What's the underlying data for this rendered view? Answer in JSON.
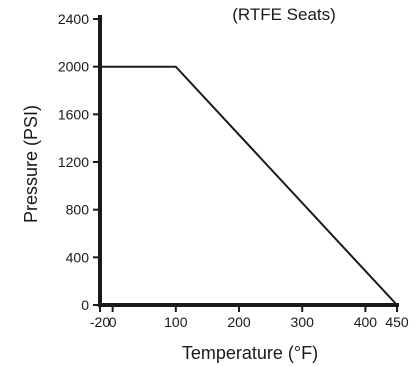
{
  "chart_data": {
    "type": "line",
    "title": "(RTFE Seats)",
    "xlabel": "Temperature (°F)",
    "ylabel": "Pressure (PSI)",
    "xlim": [
      -20,
      450
    ],
    "ylim": [
      0,
      2400
    ],
    "x_ticks": [
      -20,
      0,
      100,
      200,
      300,
      400,
      450
    ],
    "y_ticks": [
      0,
      400,
      800,
      1200,
      1600,
      2000,
      2400
    ],
    "x_tick_labels": [
      "-20",
      "0",
      "100",
      "200",
      "300",
      "400",
      "450"
    ],
    "y_tick_labels": [
      "0",
      "400",
      "800",
      "1200",
      "1600",
      "2000",
      "2400"
    ],
    "grid": false,
    "series": [
      {
        "x": [
          -20,
          100,
          450
        ],
        "y": [
          2000,
          2000,
          0
        ],
        "color": "#1a1a1a"
      }
    ]
  }
}
